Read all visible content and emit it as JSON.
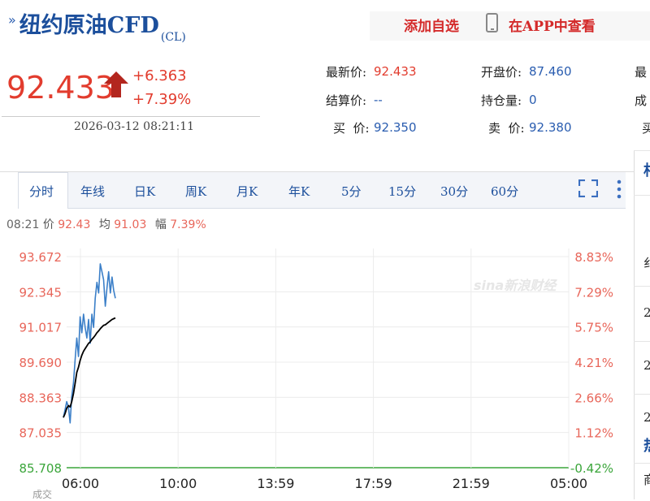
{
  "header": {
    "title_arrows": "»",
    "title": "纽约原油CFD",
    "code": "(CL)",
    "add_watchlist": "添加自选",
    "app_link": "在APP中查看"
  },
  "quote": {
    "price": "92.433",
    "change": "+6.363",
    "change_pct": "+7.39%",
    "time": "2026-03-12 08:21:11",
    "fields": {
      "latest_label": "最新价:",
      "latest_value": "92.433",
      "open_label": "开盘价:",
      "open_value": "87.460",
      "col3_label1": "最",
      "settle_label": "结算价:",
      "settle_value": "--",
      "oi_label": "持仓量:",
      "oi_value": "0",
      "col3_label2": "成",
      "bid_label": "买  价:",
      "bid_value": "92.350",
      "ask_label": "卖  价:",
      "ask_value": "92.380",
      "col3_label3": "买"
    }
  },
  "tabs": [
    "分时",
    "年线",
    "日K",
    "周K",
    "月K",
    "年K",
    "5分",
    "15分",
    "30分",
    "60分"
  ],
  "info_line": {
    "time": "08:21",
    "price_label": "价",
    "price_value": "92.43",
    "avg_label": "均",
    "avg_value": "91.03",
    "amp_label": "幅",
    "amp_value": "7.39%"
  },
  "watermark": "sina新浪财经",
  "colors": {
    "up": "#e23c2e",
    "axis_text": "#e8665a",
    "base_axis": "#3aa53a",
    "price_line": "#3b7fc8",
    "avg_line": "#000000",
    "link_blue": "#2a5db0"
  },
  "sidebar": {
    "labels": [
      "相",
      "纟",
      "2",
      "2",
      "2",
      "热",
      "商"
    ]
  },
  "bottom_cut_text": "成交",
  "chart_data": {
    "type": "line",
    "title": "",
    "x_ticks": [
      "06:00",
      "10:00",
      "13:59",
      "17:59",
      "21:59",
      "05:00"
    ],
    "y_ticks_left": [
      "93.672",
      "92.345",
      "91.017",
      "89.690",
      "88.363",
      "87.035",
      "85.708"
    ],
    "y_ticks_right": [
      "8.83%",
      "7.29%",
      "5.75%",
      "4.21%",
      "2.66%",
      "1.12%",
      "-0.42%"
    ],
    "ylim": [
      85.708,
      93.672
    ],
    "prev_close": 86.07,
    "grid": true,
    "series": [
      {
        "values": [
          87.6,
          87.9,
          88.2,
          88.0,
          87.4,
          88.4,
          88.9,
          89.8,
          90.6,
          89.9,
          91.4,
          90.8,
          91.5,
          91.0,
          90.6,
          91.3,
          90.4,
          91.5,
          91.0,
          92.1,
          92.7,
          92.3,
          93.4,
          93.1,
          92.8,
          91.8,
          92.5,
          93.1,
          92.3,
          92.9,
          92.4,
          92.1
        ]
      },
      {
        "values": [
          87.6,
          87.75,
          87.95,
          88.05,
          88.0,
          88.2,
          88.5,
          88.9,
          89.3,
          89.5,
          89.75,
          89.95,
          90.1,
          90.2,
          90.3,
          90.4,
          90.45,
          90.55,
          90.62,
          90.7,
          90.8,
          90.87,
          90.95,
          91.02,
          91.08,
          91.1,
          91.15,
          91.2,
          91.25,
          91.3,
          91.33,
          91.36
        ]
      }
    ]
  }
}
